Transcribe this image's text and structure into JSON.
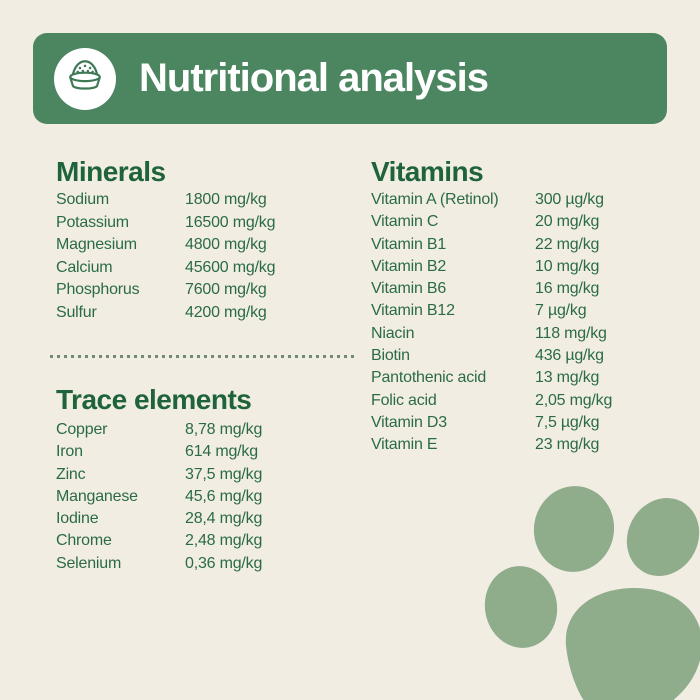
{
  "header": {
    "title": "Nutritional analysis",
    "icon": "food-bowl-icon"
  },
  "sections": {
    "minerals": {
      "title": "Minerals",
      "rows": [
        {
          "label": "Sodium",
          "value": "1800 mg/kg"
        },
        {
          "label": "Potassium",
          "value": "16500 mg/kg"
        },
        {
          "label": "Magnesium",
          "value": "4800 mg/kg"
        },
        {
          "label": "Calcium",
          "value": "45600 mg/kg"
        },
        {
          "label": "Phosphorus",
          "value": "7600 mg/kg"
        },
        {
          "label": "Sulfur",
          "value": "4200 mg/kg"
        }
      ]
    },
    "trace_elements": {
      "title": "Trace elements",
      "rows": [
        {
          "label": "Copper",
          "value": "8,78 mg/kg"
        },
        {
          "label": "Iron",
          "value": "614 mg/kg"
        },
        {
          "label": "Zinc",
          "value": "37,5 mg/kg"
        },
        {
          "label": "Manganese",
          "value": "45,6 mg/kg"
        },
        {
          "label": "Iodine",
          "value": "28,4 mg/kg"
        },
        {
          "label": "Chrome",
          "value": "2,48 mg/kg"
        },
        {
          "label": "Selenium",
          "value": "0,36 mg/kg"
        }
      ]
    },
    "vitamins": {
      "title": "Vitamins",
      "rows": [
        {
          "label": "Vitamin A (Retinol)",
          "value": "300 µg/kg"
        },
        {
          "label": "Vitamin C",
          "value": "20 mg/kg"
        },
        {
          "label": "Vitamin B1",
          "value": "22 mg/kg"
        },
        {
          "label": "Vitamin B2",
          "value": "10 mg/kg"
        },
        {
          "label": "Vitamin B6",
          "value": "16 mg/kg"
        },
        {
          "label": "Vitamin B12",
          "value": "7 µg/kg"
        },
        {
          "label": "Niacin",
          "value": "118 mg/kg"
        },
        {
          "label": "Biotin",
          "value": "436 µg/kg"
        },
        {
          "label": "Pantothenic acid",
          "value": "13 mg/kg"
        },
        {
          "label": "Folic acid",
          "value": "2,05 mg/kg"
        },
        {
          "label": "Vitamin D3",
          "value": "7,5 µg/kg"
        },
        {
          "label": "Vitamin E",
          "value": "23 mg/kg"
        }
      ]
    }
  },
  "colors": {
    "background": "#f2ede3",
    "banner": "#4b8661",
    "heading_text": "#1e6339",
    "row_text": "#2a6b45",
    "divider_dots": "#6f8a77",
    "paw": "#8fac8b",
    "icon_stroke": "#3f7a56"
  }
}
